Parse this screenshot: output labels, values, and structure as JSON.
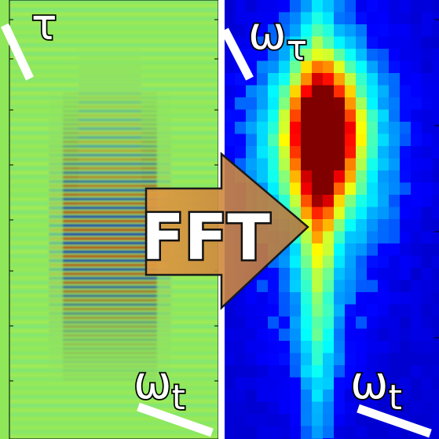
{
  "panels": {
    "left": {
      "corner_label": "τ",
      "axis_label": "ω",
      "axis_label_sub": "t",
      "colors": {
        "background": "#8ee85a",
        "red": "#8b0000",
        "blue": "#00008b"
      }
    },
    "right": {
      "corner_label": "ω",
      "corner_label_sub": "τ",
      "axis_label": "ω",
      "axis_label_sub": "t",
      "colors": {
        "background": "#000088",
        "peak": "#800000"
      }
    }
  },
  "arrow": {
    "label": "FFT",
    "colors": {
      "fill": "#d08c3c",
      "outline": "#1a1a1a"
    }
  },
  "divider_color": "#ffffff"
}
